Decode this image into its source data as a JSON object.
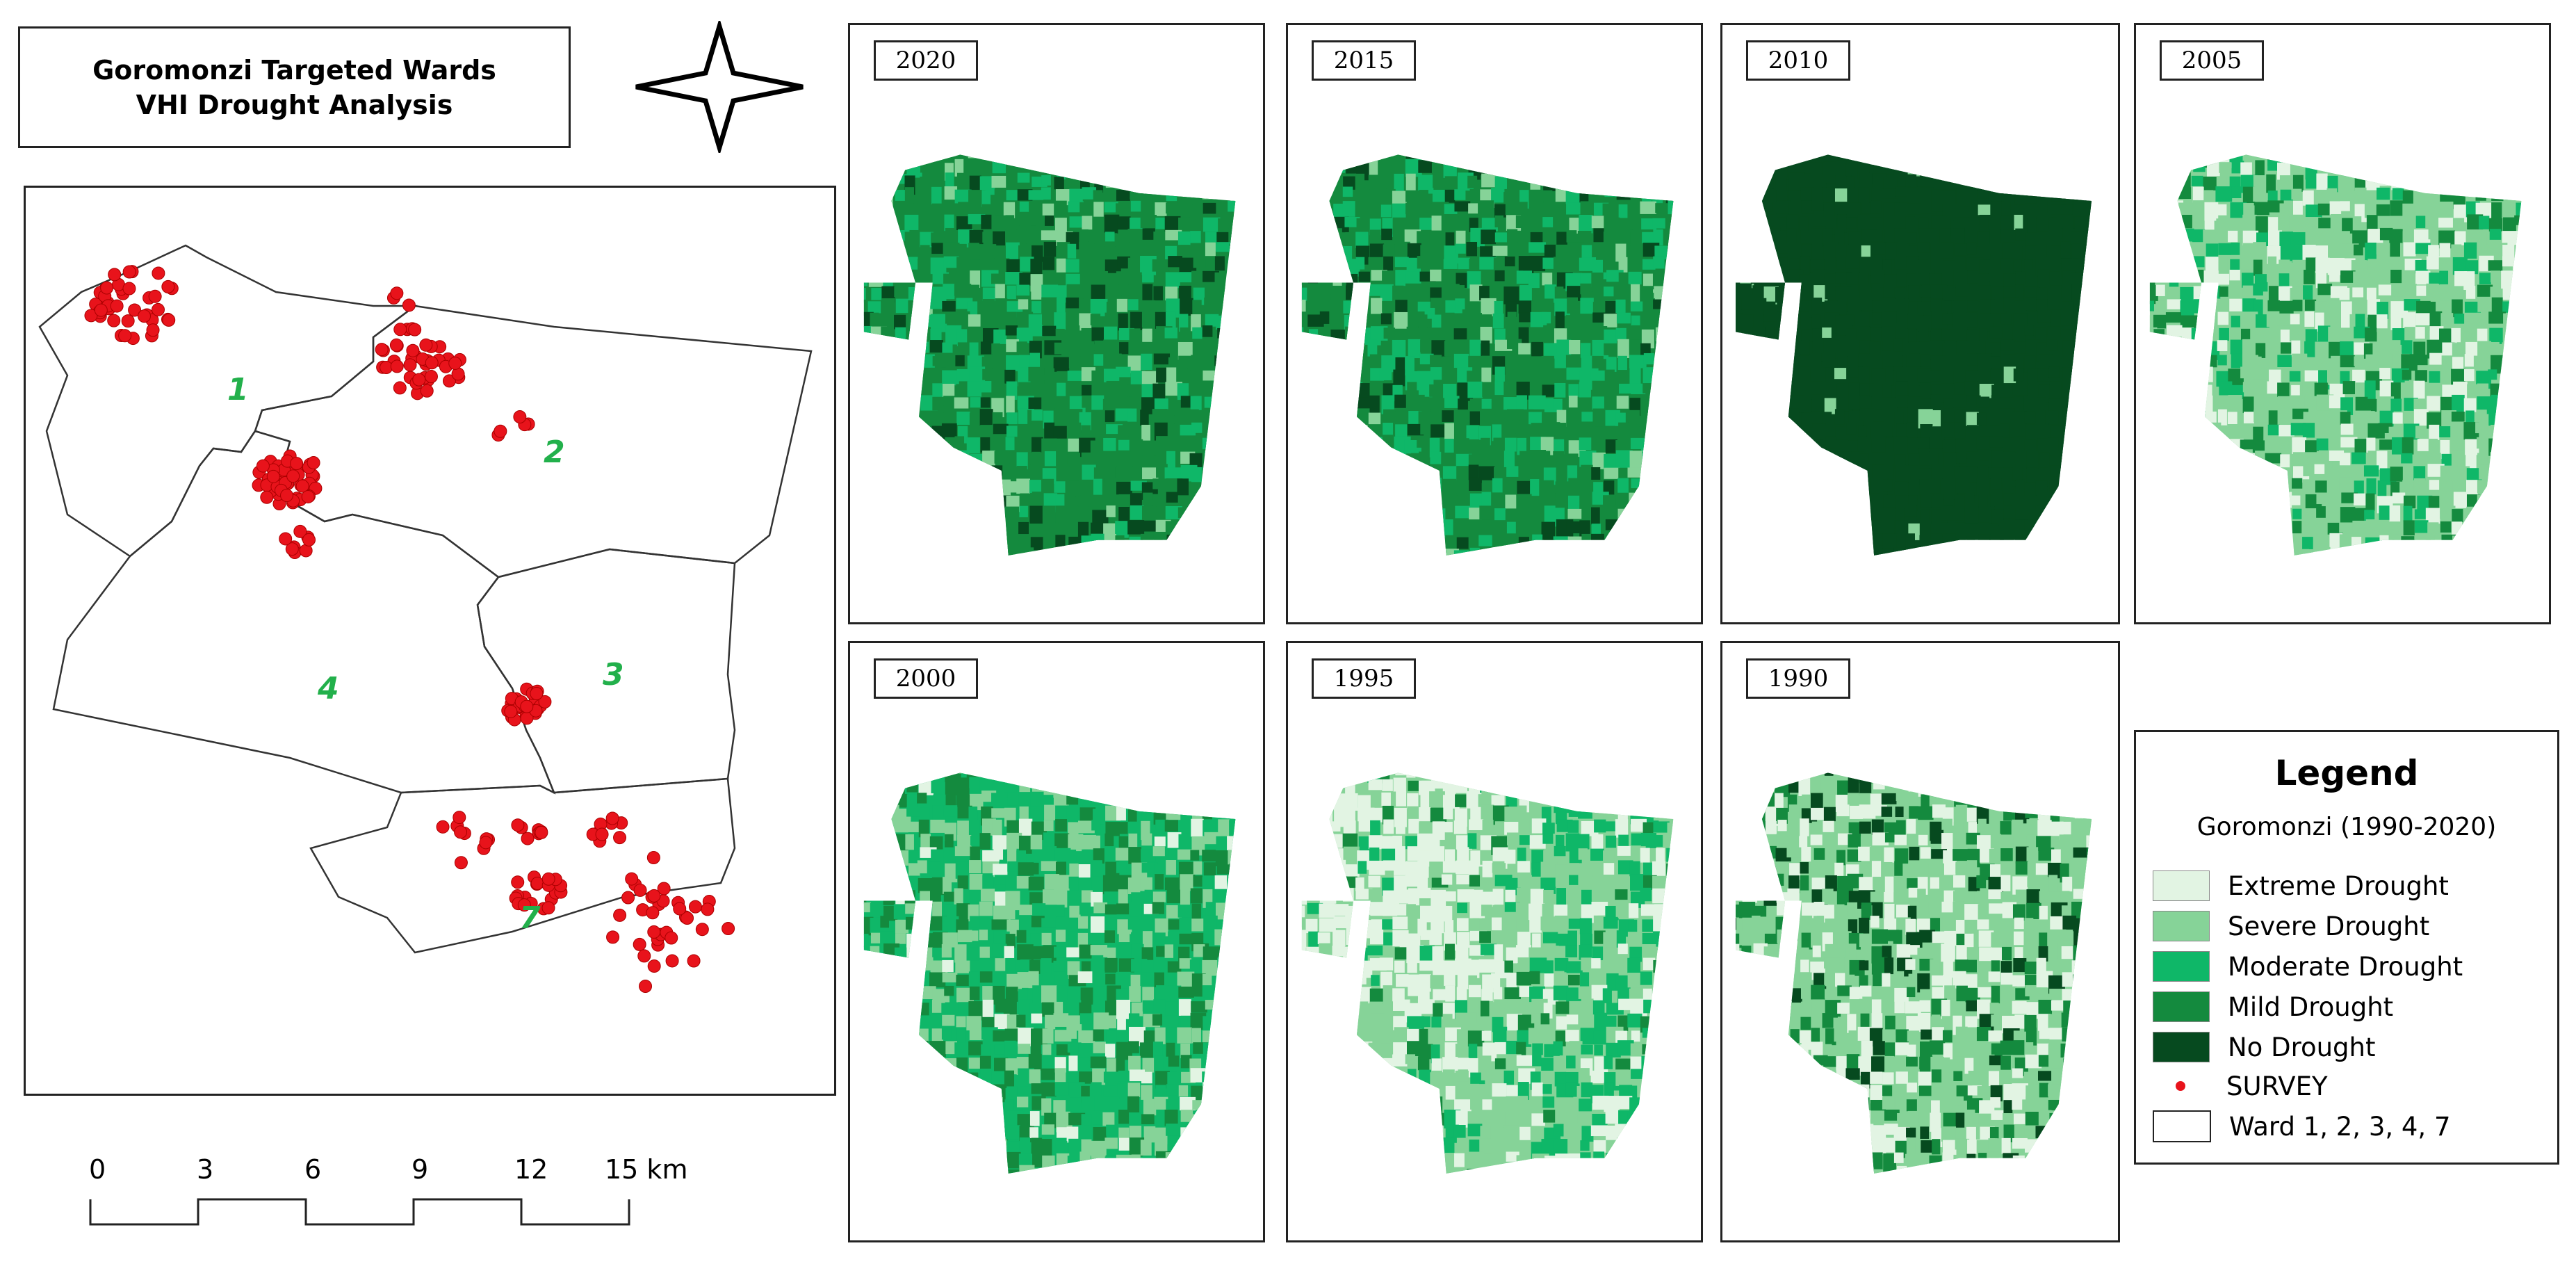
{
  "title": {
    "line1": "Goromonzi Targeted Wards",
    "line2": "VHI Drought Analysis"
  },
  "locator_map": {
    "ward_labels": [
      "1",
      "2",
      "3",
      "4",
      "7"
    ],
    "colors": {
      "boundary": "#333333",
      "survey_point": "#e8131b",
      "ward_label": "#22b04b"
    }
  },
  "panels": [
    {
      "year": "2020",
      "style": "mostly-mild"
    },
    {
      "year": "2015",
      "style": "mostly-mild"
    },
    {
      "year": "2010",
      "style": "no-drought"
    },
    {
      "year": "2005",
      "style": "mixed-light"
    },
    {
      "year": "2000",
      "style": "mixed-moderate"
    },
    {
      "year": "1995",
      "style": "extreme-west"
    },
    {
      "year": "1990",
      "style": "speckled-light"
    }
  ],
  "legend": {
    "title": "Legend",
    "subtitle": "Goromonzi (1990-2020)",
    "items": [
      {
        "label": "Extreme Drought",
        "color": "#e2f4e3"
      },
      {
        "label": "Severe Drought",
        "color": "#86d398"
      },
      {
        "label": "Moderate Drought",
        "color": "#0fb768"
      },
      {
        "label": "Mild Drought",
        "color": "#148a3e"
      },
      {
        "label": "No Drought",
        "color": "#064a1f"
      },
      {
        "label": "SURVEY",
        "color": "#e8131b"
      },
      {
        "label": "Ward 1, 2, 3, 4, 7",
        "color": "#ffffff"
      }
    ]
  },
  "scale_bar": {
    "ticks": [
      "0",
      "3",
      "6",
      "9",
      "12",
      "15 km"
    ]
  },
  "north_arrow": {
    "icon": "north-arrow-icon"
  }
}
